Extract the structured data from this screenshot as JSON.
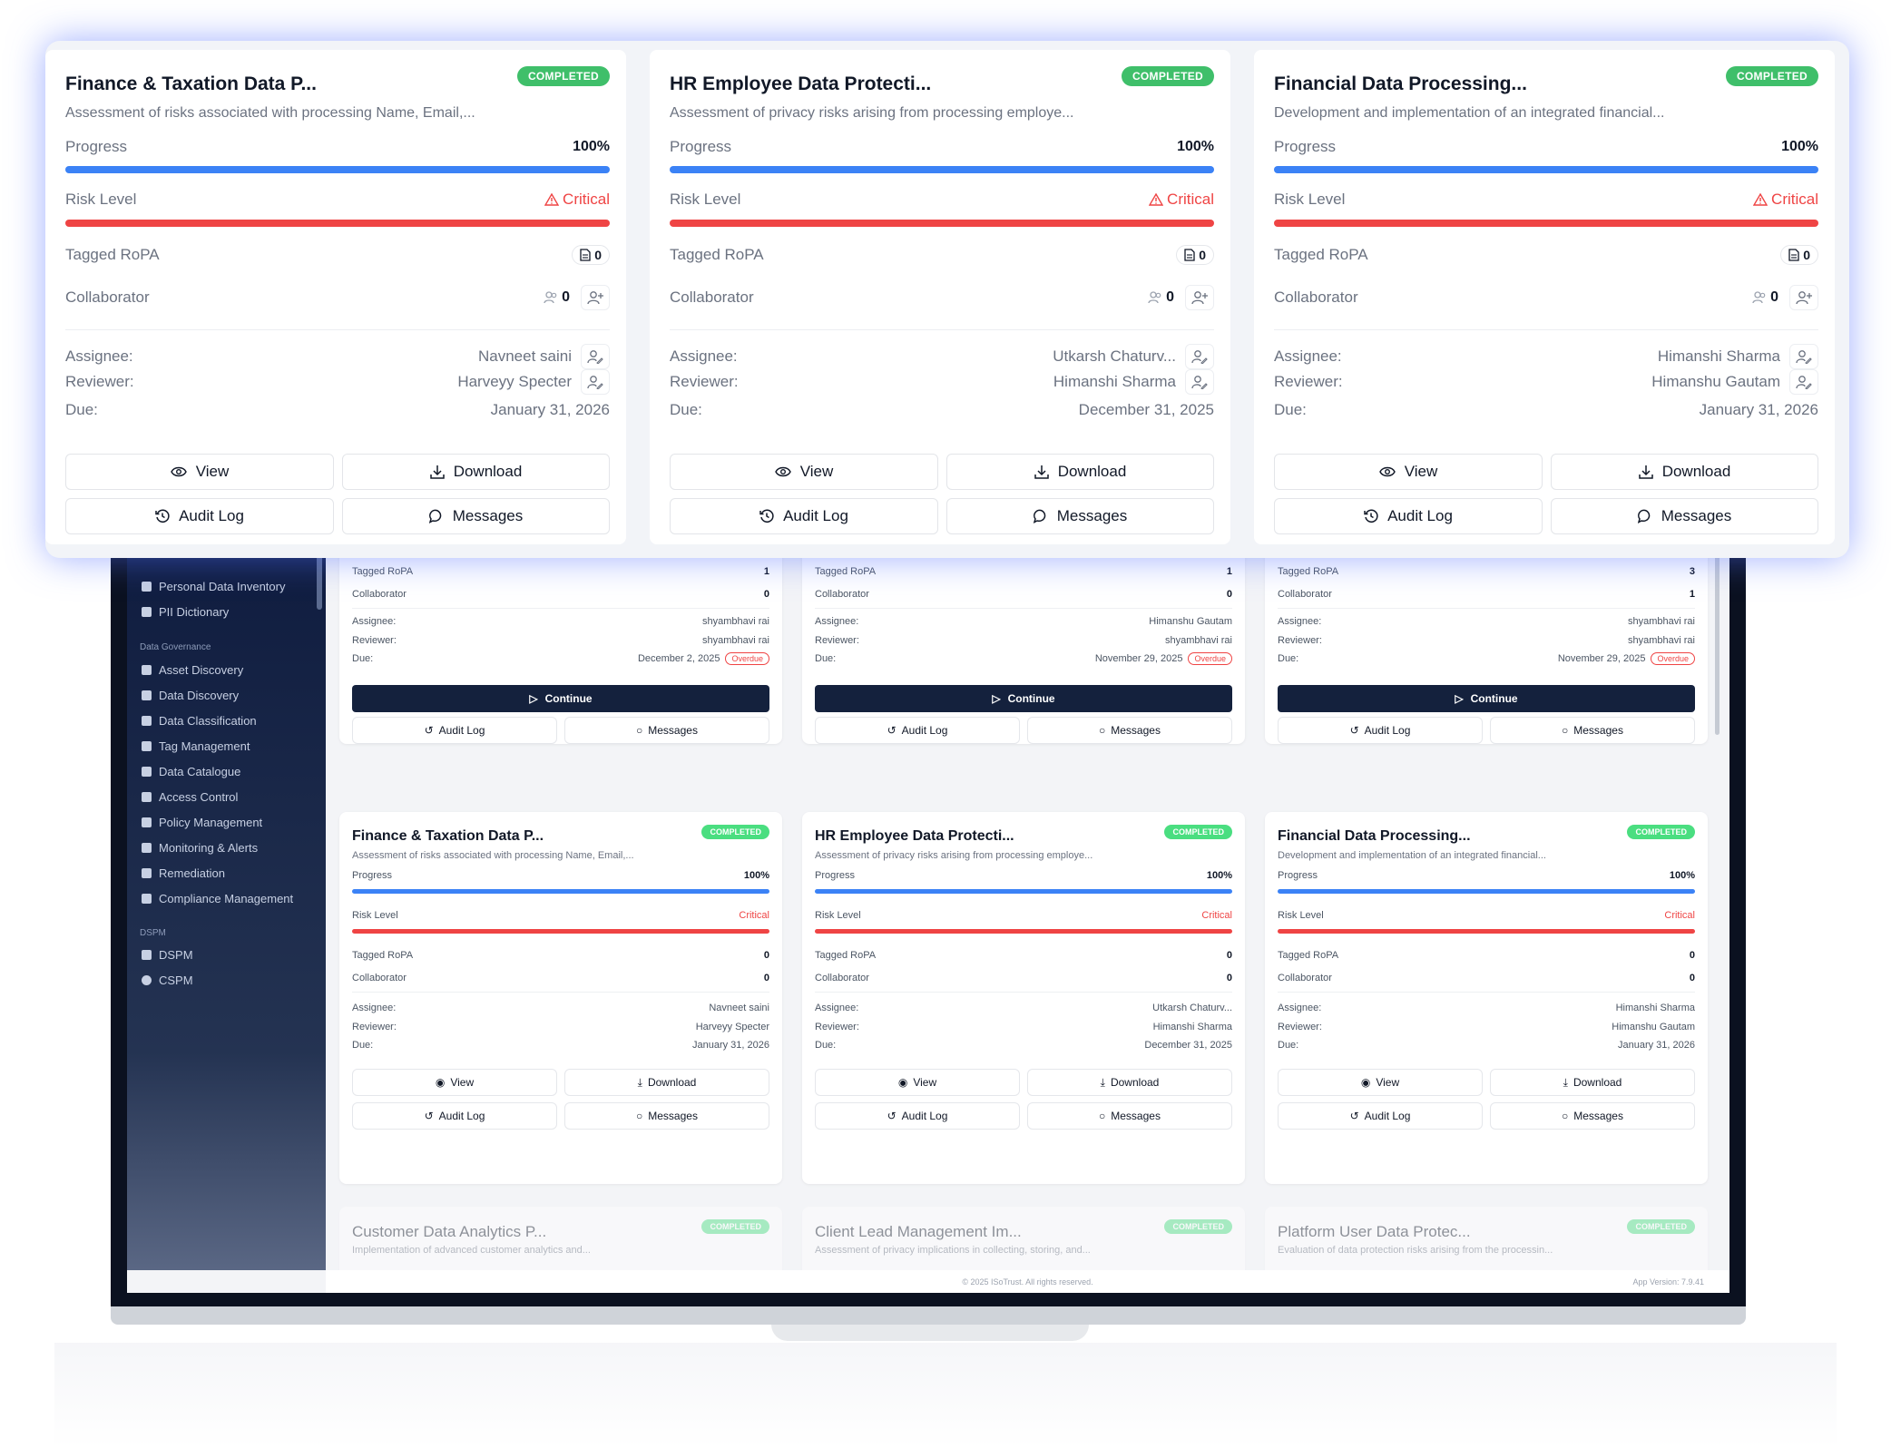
{
  "cards": [
    {
      "title": "Finance & Taxation Data P...",
      "status": "COMPLETED",
      "description": "Assessment of risks associated with processing Name, Email,...",
      "progress_label": "Progress",
      "progress_value": "100%",
      "risk_label": "Risk Level",
      "risk_value": "Critical",
      "ropa_label": "Tagged RoPA",
      "ropa_count": "0",
      "collab_label": "Collaborator",
      "collab_count": "0",
      "assignee_label": "Assignee:",
      "assignee": "Navneet saini",
      "reviewer_label": "Reviewer:",
      "reviewer": "Harveyy Specter",
      "due_label": "Due:",
      "due": "January 31, 2026",
      "view": "View",
      "download": "Download",
      "audit": "Audit Log",
      "messages": "Messages"
    },
    {
      "title": "HR Employee Data Protecti...",
      "status": "COMPLETED",
      "description": "Assessment of privacy risks arising from processing employe...",
      "progress_label": "Progress",
      "progress_value": "100%",
      "risk_label": "Risk Level",
      "risk_value": "Critical",
      "ropa_label": "Tagged RoPA",
      "ropa_count": "0",
      "collab_label": "Collaborator",
      "collab_count": "0",
      "assignee_label": "Assignee:",
      "assignee": "Utkarsh Chaturv...",
      "reviewer_label": "Reviewer:",
      "reviewer": "Himanshi Sharma",
      "due_label": "Due:",
      "due": "December 31, 2025",
      "view": "View",
      "download": "Download",
      "audit": "Audit Log",
      "messages": "Messages"
    },
    {
      "title": "Financial Data Processing...",
      "status": "COMPLETED",
      "description": "Development and implementation of an integrated financial...",
      "progress_label": "Progress",
      "progress_value": "100%",
      "risk_label": "Risk Level",
      "risk_value": "Critical",
      "ropa_label": "Tagged RoPA",
      "ropa_count": "0",
      "collab_label": "Collaborator",
      "collab_count": "0",
      "assignee_label": "Assignee:",
      "assignee": "Himanshi Sharma",
      "reviewer_label": "Reviewer:",
      "reviewer": "Himanshu Gautam",
      "due_label": "Due:",
      "due": "January 31, 2026",
      "view": "View",
      "download": "Download",
      "audit": "Audit Log",
      "messages": "Messages"
    }
  ],
  "sidebar": {
    "items_top": [
      "Personal Data Inventory",
      "PII Dictionary"
    ],
    "section_governance": "Data Governance",
    "items_governance": [
      "Asset Discovery",
      "Data Discovery",
      "Data Classification",
      "Tag Management",
      "Data Catalogue",
      "Access Control",
      "Policy Management",
      "Monitoring & Alerts",
      "Remediation",
      "Compliance Management"
    ],
    "section_dspm": "DSPM",
    "items_dspm": [
      "DSPM",
      "CSPM"
    ]
  },
  "top_cards": [
    {
      "ropa_label": "Tagged RoPA",
      "ropa_count": "1",
      "collab_label": "Collaborator",
      "collab_count": "0",
      "assignee_label": "Assignee:",
      "assignee": "shyambhavi rai",
      "reviewer_label": "Reviewer:",
      "reviewer": "shyambhavi rai",
      "due_label": "Due:",
      "due": "December 2, 2025",
      "overdue": "Overdue",
      "continue": "Continue",
      "audit": "Audit Log",
      "messages": "Messages"
    },
    {
      "ropa_label": "Tagged RoPA",
      "ropa_count": "1",
      "collab_label": "Collaborator",
      "collab_count": "0",
      "assignee_label": "Assignee:",
      "assignee": "Himanshu Gautam",
      "reviewer_label": "Reviewer:",
      "reviewer": "shyambhavi rai",
      "due_label": "Due:",
      "due": "November 29, 2025",
      "overdue": "Overdue",
      "continue": "Continue",
      "audit": "Audit Log",
      "messages": "Messages"
    },
    {
      "ropa_label": "Tagged RoPA",
      "ropa_count": "3",
      "collab_label": "Collaborator",
      "collab_count": "1",
      "assignee_label": "Assignee:",
      "assignee": "shyambhavi rai",
      "reviewer_label": "Reviewer:",
      "reviewer": "shyambhavi rai",
      "due_label": "Due:",
      "due": "November 29, 2025",
      "overdue": "Overdue",
      "continue": "Continue",
      "audit": "Audit Log",
      "messages": "Messages"
    }
  ],
  "bottom_cards": [
    {
      "title": "Customer Data Analytics P...",
      "status": "COMPLETED",
      "description": "Implementation of advanced customer analytics and..."
    },
    {
      "title": "Client Lead Management Im...",
      "status": "COMPLETED",
      "description": "Assessment of privacy implications in collecting, storing, and..."
    },
    {
      "title": "Platform User Data Protec...",
      "status": "COMPLETED",
      "description": "Evaluation of data protection risks arising from the processin..."
    }
  ],
  "footer": {
    "copyright": "© 2025 ISoTrust. All rights reserved.",
    "version": "App Version: 7.9.41"
  },
  "colors": {
    "progress": "#3b82f6",
    "risk": "#ef4444",
    "badge": "#3fbf6a",
    "continue": "#14213d"
  }
}
